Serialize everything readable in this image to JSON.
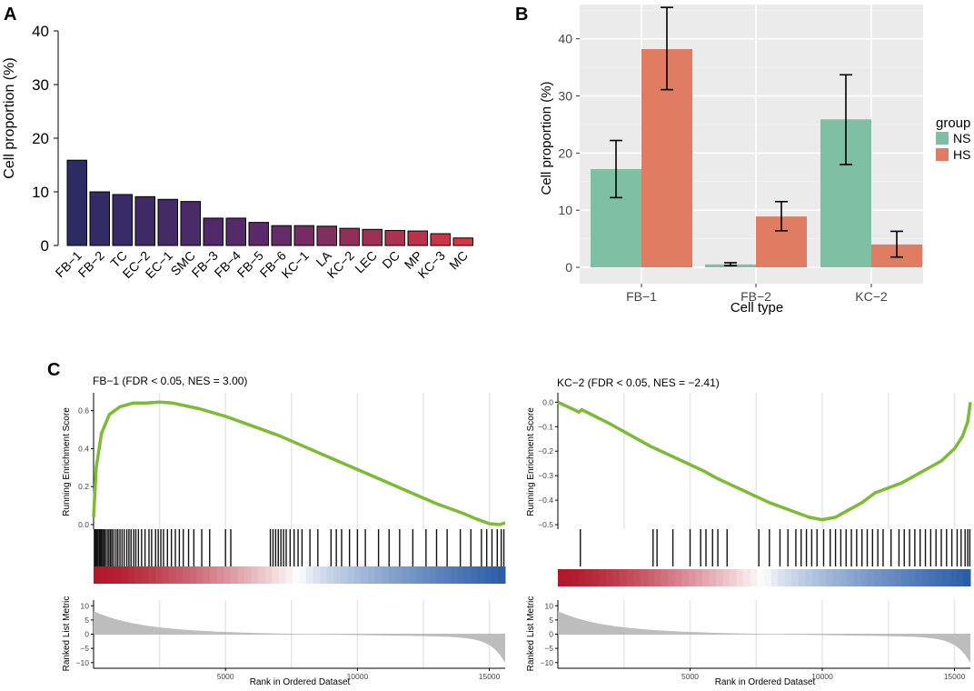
{
  "panel_labels": {
    "a": "A",
    "b": "B",
    "c": "C"
  },
  "colors": {
    "bar_gradient_start": "#2d2b63",
    "bar_gradient_mid": "#5e2a6a",
    "bar_gradient_end": "#d83642",
    "ns": "#7fbfa4",
    "hs": "#e07c61",
    "gsea_line": "#7cbb33",
    "ggplot_panel": "#ebebeb",
    "rank_red": "#b2182b",
    "rank_blue": "#2c5ea8"
  },
  "chart_data": [
    {
      "id": "A",
      "type": "bar",
      "ylabel": "Cell proportion (%)",
      "ylim": [
        0,
        40
      ],
      "yticks": [
        "0",
        "10",
        "20",
        "30",
        "40"
      ],
      "categories": [
        "FB−1",
        "FB−2",
        "TC",
        "EC−2",
        "EC−1",
        "SMC",
        "FB−3",
        "FB−4",
        "FB−5",
        "FB−6",
        "KC−1",
        "LA",
        "KC−2",
        "LEC",
        "DC",
        "MP",
        "KC−3",
        "MC"
      ],
      "values": [
        15.9,
        10.0,
        9.5,
        9.1,
        8.6,
        8.2,
        5.1,
        5.1,
        4.3,
        3.7,
        3.7,
        3.6,
        3.2,
        3.0,
        2.8,
        2.7,
        2.2,
        1.4
      ]
    },
    {
      "id": "B",
      "type": "bar",
      "xlabel": "Cell type",
      "ylabel": "Cell proportion (%)",
      "ylim": [
        0,
        46
      ],
      "yticks": [
        "0",
        "10",
        "20",
        "30",
        "40"
      ],
      "categories": [
        "FB−1",
        "FB−2",
        "KC−2"
      ],
      "legend_title": "group",
      "legend_position": "right",
      "series": [
        {
          "name": "NS",
          "values": [
            17.2,
            0.5,
            25.9
          ],
          "err_low": [
            12.2,
            0.3,
            18.0
          ],
          "err_high": [
            22.2,
            0.8,
            33.7
          ]
        },
        {
          "name": "HS",
          "values": [
            38.2,
            8.9,
            4.0
          ],
          "err_low": [
            31.1,
            6.4,
            1.8
          ],
          "err_high": [
            45.5,
            11.5,
            6.3
          ]
        }
      ]
    },
    {
      "id": "C1",
      "type": "line",
      "title": "FB−1 (FDR < 0.05, NES = 3.00)",
      "ylabel": "Running Enrichment Score",
      "ylabel2": "Ranked List Metric",
      "xlabel": "Rank in Ordered Dataset",
      "xlim": [
        0,
        15600
      ],
      "ylim": [
        0,
        0.67
      ],
      "yticks": [
        "0.0",
        "0.2",
        "0.4",
        "0.6"
      ],
      "metric_ticks": [
        "10",
        "5",
        "0",
        "−5",
        "−10"
      ],
      "xticks": [
        "5000",
        "10000",
        "15000"
      ],
      "x": [
        0,
        100,
        300,
        600,
        1000,
        1500,
        2000,
        2500,
        3000,
        4000,
        5000,
        6000,
        7000,
        8000,
        9000,
        10000,
        11000,
        12000,
        13000,
        14000,
        14500,
        15000,
        15400,
        15600
      ],
      "y": [
        0.04,
        0.3,
        0.48,
        0.58,
        0.62,
        0.64,
        0.64,
        0.645,
        0.64,
        0.61,
        0.57,
        0.52,
        0.47,
        0.41,
        0.35,
        0.29,
        0.23,
        0.17,
        0.11,
        0.06,
        0.03,
        0.005,
        0.0,
        0.01
      ],
      "hits": [
        30,
        60,
        90,
        130,
        170,
        220,
        260,
        300,
        350,
        400,
        450,
        520,
        580,
        640,
        700,
        770,
        850,
        920,
        1000,
        1080,
        1160,
        1260,
        1340,
        1420,
        1520,
        1600,
        1700,
        1820,
        1950,
        2100,
        2200,
        2350,
        2450,
        2550,
        2650,
        2800,
        2950,
        3100,
        3250,
        3400,
        3600,
        3800,
        4100,
        4400,
        5000,
        5200,
        6700,
        6800,
        6900,
        7000,
        7100,
        7200,
        7300,
        7450,
        7600,
        7750,
        7900,
        8200,
        8500,
        9000,
        9200,
        9400,
        9700,
        10000,
        10300,
        10800,
        11200,
        11600,
        12100,
        12600,
        13000,
        13400,
        13900,
        14300,
        14700,
        14900,
        15100,
        15300,
        15450,
        15550
      ]
    },
    {
      "id": "C2",
      "type": "line",
      "title": "KC−2 (FDR < 0.05, NES = −2.41)",
      "ylabel": "Running Enrichment Score",
      "ylabel2": "Ranked List Metric",
      "xlabel": "Rank in Ordered Dataset",
      "xlim": [
        0,
        15600
      ],
      "ylim": [
        -0.5,
        0.02
      ],
      "yticks": [
        "0.0",
        "−0.1",
        "−0.2",
        "−0.3",
        "−0.4",
        "−0.5"
      ],
      "metric_ticks": [
        "10",
        "5",
        "0",
        "−5",
        "−10"
      ],
      "xticks": [
        "5000",
        "10000",
        "15000"
      ],
      "x": [
        0,
        800,
        900,
        2000,
        3000,
        3500,
        3700,
        4500,
        5500,
        6000,
        7000,
        8000,
        9000,
        9500,
        10000,
        10500,
        11000,
        11500,
        12000,
        12500,
        13000,
        13500,
        14000,
        14500,
        15000,
        15300,
        15500,
        15600
      ],
      "y": [
        0.0,
        -0.04,
        -0.03,
        -0.09,
        -0.15,
        -0.18,
        -0.19,
        -0.23,
        -0.28,
        -0.31,
        -0.36,
        -0.41,
        -0.45,
        -0.47,
        -0.48,
        -0.47,
        -0.44,
        -0.41,
        -0.37,
        -0.35,
        -0.33,
        -0.3,
        -0.27,
        -0.24,
        -0.19,
        -0.14,
        -0.08,
        0.0
      ],
      "hits": [
        850,
        3600,
        3750,
        4350,
        5000,
        5400,
        5600,
        5850,
        6050,
        6400,
        7600,
        8000,
        8400,
        8700,
        9000,
        9200,
        9400,
        9600,
        9800,
        10050,
        10300,
        10500,
        10700,
        10900,
        11100,
        11300,
        11500,
        11700,
        11900,
        12100,
        12300,
        12600,
        12900,
        13100,
        13300,
        13500,
        13700,
        13900,
        14100,
        14300,
        14500,
        14700,
        14900,
        15100,
        15250,
        15400,
        15500,
        15580
      ]
    }
  ]
}
